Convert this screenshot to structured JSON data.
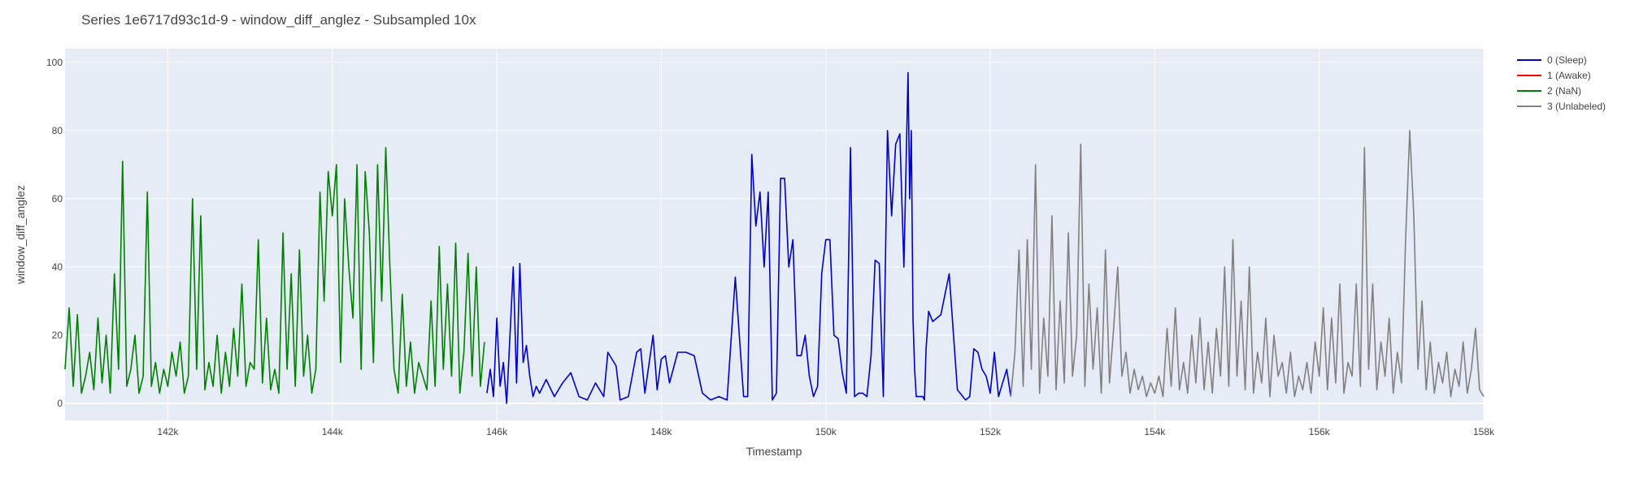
{
  "chart_data": {
    "type": "line",
    "title": "Series 1e6717d93c1d-9 - window_diff_anglez - Subsampled 10x",
    "xlabel": "Timestamp",
    "ylabel": "window_diff_anglez",
    "xlim": [
      140750,
      158000
    ],
    "ylim": [
      -5,
      104
    ],
    "x_ticks": [
      142000,
      144000,
      146000,
      148000,
      150000,
      152000,
      154000,
      156000,
      158000
    ],
    "x_tick_labels": [
      "142k",
      "144k",
      "146k",
      "148k",
      "150k",
      "152k",
      "154k",
      "156k",
      "158k"
    ],
    "y_ticks": [
      0,
      20,
      40,
      60,
      80,
      100
    ],
    "y_tick_labels": [
      "0",
      "20",
      "40",
      "60",
      "80",
      "100"
    ],
    "grid": true,
    "legend_position": "top-right",
    "series": [
      {
        "name": "0 (Sleep)",
        "color": "#0000cc",
        "segments": [
          {
            "x": [
              145880,
              145920,
              145960,
              146000,
              146040,
              146080,
              146120,
              146160,
              146200,
              146240,
              146280,
              146320,
              146360,
              146400,
              146440,
              146480,
              146520,
              146600,
              146700,
              146800,
              146900,
              147000,
              147100,
              147200,
              147300,
              147350,
              147400,
              147450,
              147500,
              147600,
              147700,
              147750,
              147800,
              147900,
              147950,
              148000,
              148050,
              148100,
              148200,
              148300,
              148400,
              148500,
              148600,
              148700,
              148800,
              148900,
              149000,
              149050,
              149100,
              149150,
              149200,
              149250,
              149300,
              149350,
              149400,
              149450,
              149500,
              149550,
              149600,
              149650,
              149700,
              149750,
              149800,
              149850,
              149900,
              149950,
              150000,
              150050,
              150100,
              150150,
              150200,
              150250,
              150300,
              150350,
              150400,
              150450,
              150500,
              150550,
              150600,
              150650,
              150700,
              150750,
              150800,
              150850,
              150900,
              150950,
              151000,
              151020,
              151040,
              151060,
              151080,
              151100,
              151120,
              151140,
              151160,
              151180,
              151200,
              151220,
              151250,
              151300,
              151400,
              151500,
              151600,
              151700,
              151750,
              151800,
              151850,
              151900,
              151950,
              152000,
              152050,
              152100,
              152150,
              152200,
              152250
            ],
            "y": [
              3,
              10,
              2,
              25,
              5,
              12,
              0,
              20,
              40,
              6,
              41,
              12,
              17,
              8,
              2,
              5,
              3,
              7,
              2,
              6,
              9,
              2,
              1,
              6,
              2,
              15,
              13,
              11,
              1,
              2,
              15,
              16,
              3,
              20,
              4,
              13,
              14,
              6,
              15,
              15,
              14,
              3,
              1,
              2,
              1,
              37,
              2,
              2,
              73,
              52,
              62,
              40,
              62,
              1,
              3,
              66,
              66,
              40,
              48,
              14,
              14,
              20,
              8,
              2,
              5,
              38,
              48,
              48,
              20,
              19,
              9,
              3,
              75,
              2,
              3,
              3,
              2,
              14,
              42,
              41,
              2,
              80,
              55,
              76,
              79,
              40,
              97,
              60,
              80,
              25,
              10,
              2,
              2,
              2,
              2,
              2,
              1,
              16,
              27,
              24,
              26,
              38,
              4,
              1,
              2,
              16,
              15,
              10,
              8,
              3,
              15,
              2,
              6,
              10,
              2
            ]
          }
        ]
      },
      {
        "name": "1 (Awake)",
        "color": "#ff0000",
        "segments": []
      },
      {
        "name": "2 (NaN)",
        "color": "#008000",
        "segments": [
          {
            "x": [
              140750,
              140800,
              140850,
              140900,
              140950,
              141000,
              141050,
              141100,
              141150,
              141200,
              141250,
              141300,
              141350,
              141400,
              141450,
              141500,
              141550,
              141600,
              141650,
              141700,
              141750,
              141800,
              141850,
              141900,
              141950,
              142000,
              142050,
              142100,
              142150,
              142200,
              142250,
              142300,
              142350,
              142400,
              142450,
              142500,
              142550,
              142600,
              142650,
              142700,
              142750,
              142800,
              142850,
              142900,
              142950,
              143000,
              143050,
              143100,
              143150,
              143200,
              143250,
              143300,
              143350,
              143400,
              143450,
              143500,
              143550,
              143600,
              143650,
              143700,
              143750,
              143800,
              143850,
              143900,
              143950,
              144000,
              144050,
              144100,
              144150,
              144200,
              144250,
              144300,
              144350,
              144400,
              144450,
              144500,
              144550,
              144600,
              144650,
              144700,
              144750,
              144800,
              144850,
              144900,
              144950,
              145000,
              145050,
              145100,
              145150,
              145200,
              145250,
              145300,
              145350,
              145400,
              145450,
              145500,
              145550,
              145600,
              145650,
              145700,
              145750,
              145800,
              145850
            ],
            "y": [
              10,
              28,
              5,
              26,
              3,
              8,
              15,
              4,
              25,
              6,
              20,
              3,
              38,
              10,
              71,
              5,
              10,
              20,
              3,
              8,
              62,
              5,
              12,
              3,
              10,
              5,
              15,
              8,
              18,
              3,
              8,
              60,
              10,
              55,
              4,
              12,
              5,
              20,
              3,
              15,
              5,
              22,
              8,
              35,
              5,
              12,
              10,
              48,
              6,
              25,
              4,
              10,
              3,
              50,
              10,
              38,
              5,
              45,
              8,
              20,
              3,
              10,
              62,
              30,
              68,
              55,
              70,
              12,
              60,
              40,
              25,
              70,
              10,
              68,
              50,
              12,
              70,
              30,
              75,
              40,
              10,
              3,
              32,
              5,
              18,
              3,
              12,
              8,
              4,
              30,
              5,
              46,
              10,
              35,
              8,
              47,
              3,
              15,
              44,
              8,
              40,
              5,
              18
            ]
          }
        ]
      },
      {
        "name": "3 (Unlabeled)",
        "color": "#808080",
        "segments": [
          {
            "x": [
              152250,
              152300,
              152350,
              152400,
              152450,
              152500,
              152550,
              152600,
              152650,
              152700,
              152750,
              152800,
              152850,
              152900,
              152950,
              153000,
              153050,
              153100,
              153150,
              153200,
              153250,
              153300,
              153350,
              153400,
              153450,
              153500,
              153550,
              153600,
              153650,
              153700,
              153750,
              153800,
              153850,
              153900,
              153950,
              154000,
              154050,
              154100,
              154150,
              154200,
              154250,
              154300,
              154350,
              154400,
              154450,
              154500,
              154550,
              154600,
              154650,
              154700,
              154750,
              154800,
              154850,
              154900,
              154950,
              155000,
              155050,
              155100,
              155150,
              155200,
              155250,
              155300,
              155350,
              155400,
              155450,
              155500,
              155550,
              155600,
              155650,
              155700,
              155750,
              155800,
              155850,
              155900,
              155950,
              156000,
              156050,
              156100,
              156150,
              156200,
              156250,
              156300,
              156350,
              156400,
              156450,
              156500,
              156550,
              156600,
              156650,
              156700,
              156750,
              156800,
              156850,
              156900,
              156950,
              157000,
              157050,
              157100,
              157150,
              157200,
              157250,
              157300,
              157350,
              157400,
              157450,
              157500,
              157550,
              157600,
              157650,
              157700,
              157750,
              157800,
              157850,
              157900,
              157950,
              158000
            ],
            "y": [
              2,
              15,
              45,
              5,
              48,
              10,
              70,
              3,
              25,
              8,
              55,
              4,
              30,
              6,
              50,
              8,
              20,
              76,
              5,
              35,
              10,
              28,
              3,
              45,
              6,
              22,
              40,
              8,
              15,
              3,
              10,
              4,
              8,
              2,
              6,
              3,
              8,
              2,
              22,
              5,
              28,
              4,
              12,
              3,
              20,
              6,
              25,
              4,
              18,
              3,
              22,
              8,
              40,
              5,
              48,
              8,
              30,
              4,
              40,
              3,
              15,
              6,
              25,
              2,
              20,
              8,
              12,
              3,
              15,
              2,
              8,
              4,
              12,
              3,
              18,
              8,
              28,
              4,
              25,
              6,
              35,
              3,
              12,
              8,
              35,
              5,
              75,
              10,
              35,
              4,
              18,
              8,
              25,
              3,
              15,
              6,
              48,
              80,
              55,
              10,
              30,
              4,
              18,
              3,
              12,
              6,
              15,
              2,
              10,
              5,
              18,
              3,
              10,
              22,
              4,
              2
            ]
          }
        ]
      }
    ]
  }
}
